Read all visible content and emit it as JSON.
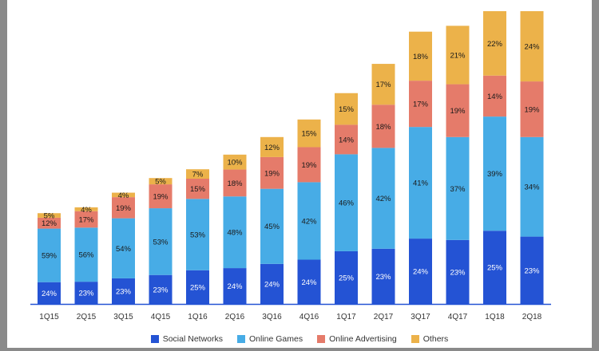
{
  "chart_data": {
    "type": "bar",
    "stacked": true,
    "categories": [
      "1Q15",
      "2Q15",
      "3Q15",
      "4Q15",
      "1Q16",
      "2Q16",
      "3Q16",
      "4Q16",
      "1Q17",
      "2Q17",
      "3Q17",
      "4Q17",
      "1Q18",
      "2Q18"
    ],
    "relative_totals": [
      0.31,
      0.33,
      0.38,
      0.43,
      0.46,
      0.51,
      0.57,
      0.63,
      0.72,
      0.82,
      0.93,
      0.95,
      1.0,
      1.0
    ],
    "series": [
      {
        "name": "Social Networks",
        "color": "#2453d4",
        "values": [
          24,
          23,
          23,
          23,
          25,
          24,
          24,
          24,
          25,
          23,
          24,
          23,
          25,
          23
        ]
      },
      {
        "name": "Online Games",
        "color": "#47ace6",
        "values": [
          59,
          56,
          54,
          53,
          53,
          48,
          45,
          42,
          46,
          42,
          41,
          37,
          39,
          34
        ]
      },
      {
        "name": "Online Advertising",
        "color": "#e57b6a",
        "values": [
          12,
          17,
          19,
          19,
          15,
          18,
          19,
          19,
          14,
          18,
          17,
          19,
          14,
          19
        ]
      },
      {
        "name": "Others",
        "color": "#ecb24a",
        "values": [
          5,
          4,
          4,
          5,
          7,
          10,
          12,
          15,
          15,
          17,
          18,
          21,
          22,
          24
        ]
      }
    ],
    "legend_position": "bottom",
    "grid": false
  }
}
